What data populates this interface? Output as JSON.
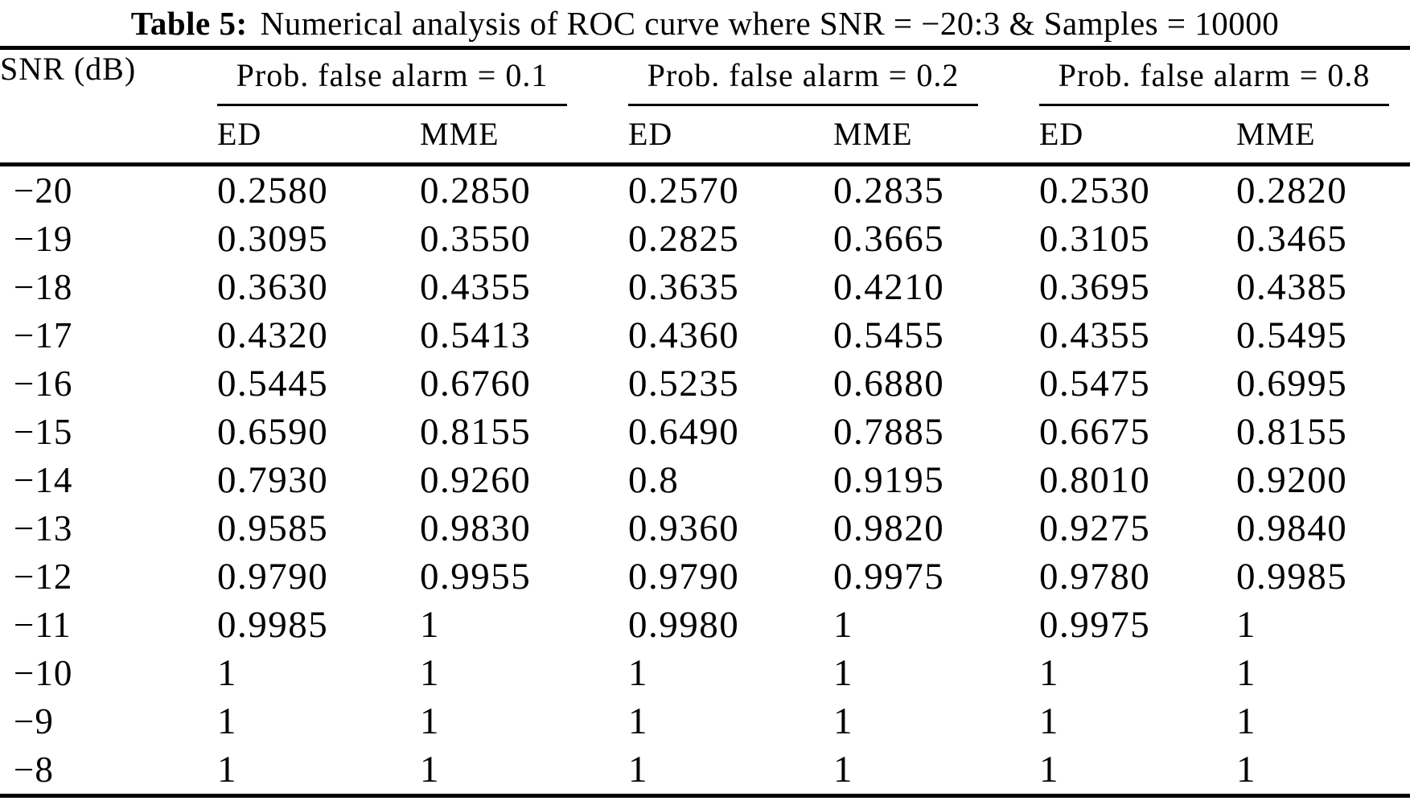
{
  "page": {
    "background_color": "#ffffff",
    "text_color": "#000000"
  },
  "caption": {
    "label": "Table 5:",
    "text": "Numerical analysis of ROC curve where SNR = −20:3 & Samples = 10000"
  },
  "table": {
    "snr_header": "SNR (dB)",
    "groups": [
      {
        "label": "Prob. false alarm = 0.1",
        "subcolumns": [
          "ED",
          "MME"
        ]
      },
      {
        "label": "Prob. false alarm = 0.2",
        "subcolumns": [
          "ED",
          "MME"
        ]
      },
      {
        "label": "Prob. false alarm = 0.8",
        "subcolumns": [
          "ED",
          "MME"
        ]
      }
    ],
    "rows": [
      {
        "snr": "−20",
        "values": [
          "0.2580",
          "0.2850",
          "0.2570",
          "0.2835",
          "0.2530",
          "0.2820"
        ]
      },
      {
        "snr": "−19",
        "values": [
          "0.3095",
          "0.3550",
          "0.2825",
          "0.3665",
          "0.3105",
          "0.3465"
        ]
      },
      {
        "snr": "−18",
        "values": [
          "0.3630",
          "0.4355",
          "0.3635",
          "0.4210",
          "0.3695",
          "0.4385"
        ]
      },
      {
        "snr": "−17",
        "values": [
          "0.4320",
          "0.5413",
          "0.4360",
          "0.5455",
          "0.4355",
          "0.5495"
        ]
      },
      {
        "snr": "−16",
        "values": [
          "0.5445",
          "0.6760",
          "0.5235",
          "0.6880",
          "0.5475",
          "0.6995"
        ]
      },
      {
        "snr": "−15",
        "values": [
          "0.6590",
          "0.8155",
          "0.6490",
          "0.7885",
          "0.6675",
          "0.8155"
        ]
      },
      {
        "snr": "−14",
        "values": [
          "0.7930",
          "0.9260",
          "0.8",
          "0.9195",
          "0.8010",
          "0.9200"
        ]
      },
      {
        "snr": "−13",
        "values": [
          "0.9585",
          "0.9830",
          "0.9360",
          "0.9820",
          "0.9275",
          "0.9840"
        ]
      },
      {
        "snr": "−12",
        "values": [
          "0.9790",
          "0.9955",
          "0.9790",
          "0.9975",
          "0.9780",
          "0.9985"
        ]
      },
      {
        "snr": "−11",
        "values": [
          "0.9985",
          "1",
          "0.9980",
          "1",
          "0.9975",
          "1"
        ]
      },
      {
        "snr": "−10",
        "values": [
          "1",
          "1",
          "1",
          "1",
          "1",
          "1"
        ]
      },
      {
        "snr": "−9",
        "values": [
          "1",
          "1",
          "1",
          "1",
          "1",
          "1"
        ]
      },
      {
        "snr": "−8",
        "values": [
          "1",
          "1",
          "1",
          "1",
          "1",
          "1"
        ]
      }
    ]
  },
  "chart_data": {
    "type": "table",
    "title": "Table 5: Numerical analysis of ROC curve where SNR = −20:3 & Samples = 10000",
    "columns": [
      "SNR (dB)",
      "Pfa 0.1 ED",
      "Pfa 0.1 MME",
      "Pfa 0.2 ED",
      "Pfa 0.2 MME",
      "Pfa 0.8 ED",
      "Pfa 0.8 MME"
    ],
    "rows": [
      [
        -20,
        0.258,
        0.285,
        0.257,
        0.2835,
        0.253,
        0.282
      ],
      [
        -19,
        0.3095,
        0.355,
        0.2825,
        0.3665,
        0.3105,
        0.3465
      ],
      [
        -18,
        0.363,
        0.4355,
        0.3635,
        0.421,
        0.3695,
        0.4385
      ],
      [
        -17,
        0.432,
        0.5413,
        0.436,
        0.5455,
        0.4355,
        0.5495
      ],
      [
        -16,
        0.5445,
        0.676,
        0.5235,
        0.688,
        0.5475,
        0.6995
      ],
      [
        -15,
        0.659,
        0.8155,
        0.649,
        0.7885,
        0.6675,
        0.8155
      ],
      [
        -14,
        0.793,
        0.926,
        0.8,
        0.9195,
        0.801,
        0.92
      ],
      [
        -13,
        0.9585,
        0.983,
        0.936,
        0.982,
        0.9275,
        0.984
      ],
      [
        -12,
        0.979,
        0.9955,
        0.979,
        0.9975,
        0.978,
        0.9985
      ],
      [
        -11,
        0.9985,
        1,
        0.998,
        1,
        0.9975,
        1
      ],
      [
        -10,
        1,
        1,
        1,
        1,
        1,
        1
      ],
      [
        -9,
        1,
        1,
        1,
        1,
        1,
        1
      ],
      [
        -8,
        1,
        1,
        1,
        1,
        1,
        1
      ]
    ]
  }
}
